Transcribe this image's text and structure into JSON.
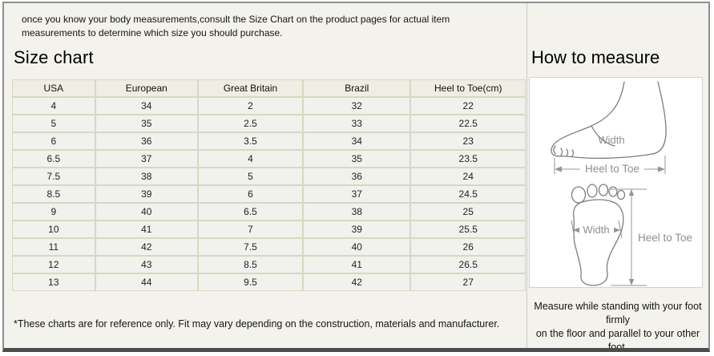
{
  "intro_text": "once you know your body measurements,consult the Size Chart on the product pages for actual item measurements to determine which size you should purchase.",
  "size_chart": {
    "title": "Size chart",
    "footnote": "*These charts are for reference only. Fit may vary depending on the construction, materials and manufacturer."
  },
  "chart_data": {
    "type": "table",
    "title": "Size chart",
    "columns": [
      "USA",
      "European",
      "Great Britain",
      "Brazil",
      "Heel to Toe(cm)"
    ],
    "rows": [
      [
        "4",
        "34",
        "2",
        "32",
        "22"
      ],
      [
        "5",
        "35",
        "2.5",
        "33",
        "22.5"
      ],
      [
        "6",
        "36",
        "3.5",
        "34",
        "23"
      ],
      [
        "6.5",
        "37",
        "4",
        "35",
        "23.5"
      ],
      [
        "7.5",
        "38",
        "5",
        "36",
        "24"
      ],
      [
        "8.5",
        "39",
        "6",
        "37",
        "24.5"
      ],
      [
        "9",
        "40",
        "6.5",
        "38",
        "25"
      ],
      [
        "10",
        "41",
        "7",
        "39",
        "25.5"
      ],
      [
        "11",
        "42",
        "7.5",
        "40",
        "26"
      ],
      [
        "12",
        "43",
        "8.5",
        "41",
        "26.5"
      ],
      [
        "13",
        "44",
        "9.5",
        "42",
        "27"
      ]
    ]
  },
  "how_to_measure": {
    "title": "How to measure",
    "side_view": {
      "width_label": "Width",
      "heel_to_toe_label": "Heel to Toe"
    },
    "top_view": {
      "width_label": "Width",
      "heel_to_toe_label": "Heel to Toe"
    },
    "note_line1": "Measure while standing with your foot firmly",
    "note_line2": "on the floor and parallel to your other foot."
  },
  "colors": {
    "page_background": "#f3f2ec",
    "table_cell": "#f1f1ee",
    "table_header": "#efede4",
    "table_border": "#d8d8c1",
    "frame_border": "#8f8f8f",
    "frame_bottom_bar": "#4c4c4c",
    "diagram_line": "#8c8c8c",
    "text": "#141414"
  }
}
